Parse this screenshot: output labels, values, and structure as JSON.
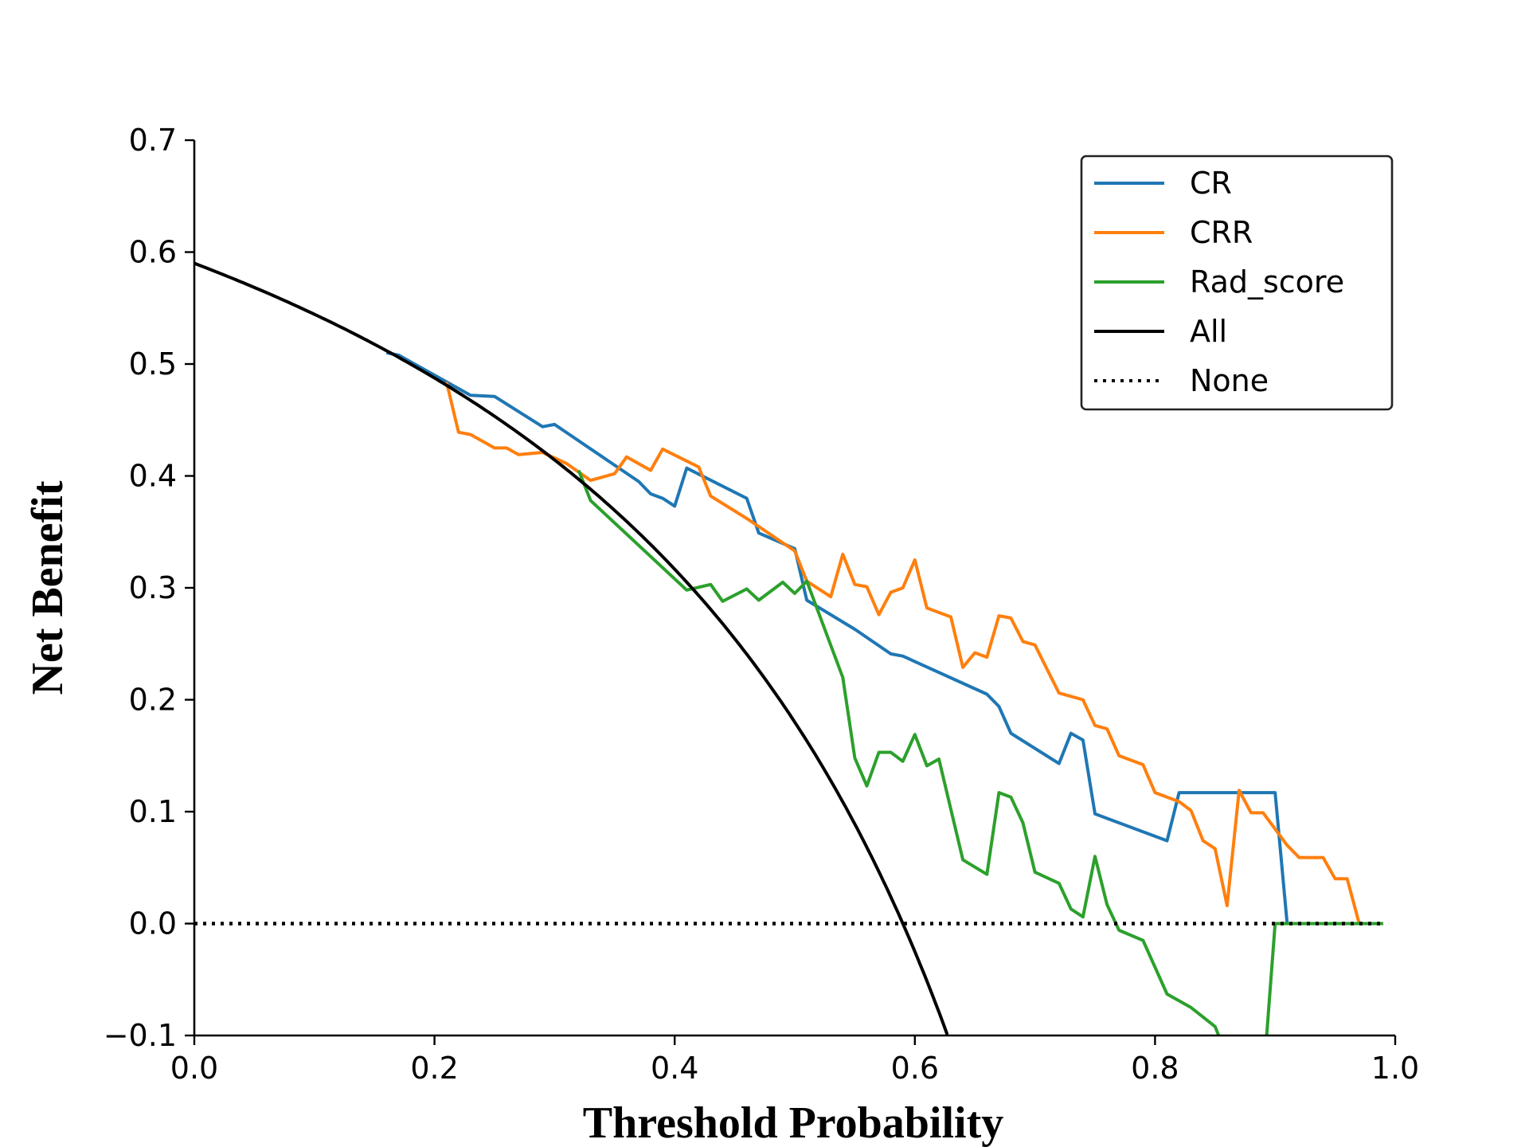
{
  "chart_data": {
    "type": "line",
    "title": "",
    "xlabel": "Threshold Probability",
    "ylabel": "Net Benefit",
    "xlim": [
      0.0,
      1.0
    ],
    "ylim": [
      -0.1,
      0.7
    ],
    "xticks": [
      "0.0",
      "0.2",
      "0.4",
      "0.6",
      "0.8",
      "1.0"
    ],
    "yticks": [
      "−0.1",
      "0.0",
      "0.1",
      "0.2",
      "0.3",
      "0.4",
      "0.5",
      "0.6",
      "0.7"
    ],
    "grid": false,
    "legend_position": "top-right",
    "series": [
      {
        "name": "CR",
        "color": "#1f77b4",
        "style": "solid",
        "points": [
          [
            0.16,
            0.51
          ],
          [
            0.17,
            0.508
          ],
          [
            0.2,
            0.49
          ],
          [
            0.23,
            0.472
          ],
          [
            0.25,
            0.471
          ],
          [
            0.29,
            0.444
          ],
          [
            0.3,
            0.446
          ],
          [
            0.37,
            0.395
          ],
          [
            0.38,
            0.384
          ],
          [
            0.39,
            0.38
          ],
          [
            0.4,
            0.373
          ],
          [
            0.41,
            0.407
          ],
          [
            0.46,
            0.38
          ],
          [
            0.47,
            0.349
          ],
          [
            0.5,
            0.335
          ],
          [
            0.51,
            0.289
          ],
          [
            0.55,
            0.263
          ],
          [
            0.58,
            0.241
          ],
          [
            0.59,
            0.239
          ],
          [
            0.66,
            0.205
          ],
          [
            0.67,
            0.194
          ],
          [
            0.68,
            0.17
          ],
          [
            0.72,
            0.143
          ],
          [
            0.73,
            0.17
          ],
          [
            0.74,
            0.164
          ],
          [
            0.75,
            0.098
          ],
          [
            0.81,
            0.074
          ],
          [
            0.82,
            0.117
          ],
          [
            0.9,
            0.117
          ],
          [
            0.91,
            0.0
          ],
          [
            0.99,
            0.0
          ]
        ]
      },
      {
        "name": "CRR",
        "color": "#ff7f0e",
        "style": "solid",
        "points": [
          [
            0.21,
            0.484
          ],
          [
            0.22,
            0.439
          ],
          [
            0.23,
            0.437
          ],
          [
            0.25,
            0.425
          ],
          [
            0.26,
            0.425
          ],
          [
            0.27,
            0.419
          ],
          [
            0.29,
            0.421
          ],
          [
            0.31,
            0.411
          ],
          [
            0.33,
            0.396
          ],
          [
            0.35,
            0.402
          ],
          [
            0.36,
            0.417
          ],
          [
            0.38,
            0.405
          ],
          [
            0.39,
            0.424
          ],
          [
            0.42,
            0.408
          ],
          [
            0.43,
            0.382
          ],
          [
            0.46,
            0.362
          ],
          [
            0.5,
            0.333
          ],
          [
            0.51,
            0.306
          ],
          [
            0.53,
            0.292
          ],
          [
            0.54,
            0.33
          ],
          [
            0.55,
            0.303
          ],
          [
            0.56,
            0.301
          ],
          [
            0.57,
            0.276
          ],
          [
            0.58,
            0.296
          ],
          [
            0.59,
            0.3
          ],
          [
            0.6,
            0.325
          ],
          [
            0.61,
            0.282
          ],
          [
            0.63,
            0.274
          ],
          [
            0.64,
            0.229
          ],
          [
            0.65,
            0.242
          ],
          [
            0.66,
            0.238
          ],
          [
            0.67,
            0.275
          ],
          [
            0.68,
            0.273
          ],
          [
            0.69,
            0.252
          ],
          [
            0.7,
            0.249
          ],
          [
            0.72,
            0.206
          ],
          [
            0.74,
            0.2
          ],
          [
            0.75,
            0.177
          ],
          [
            0.76,
            0.174
          ],
          [
            0.77,
            0.15
          ],
          [
            0.79,
            0.142
          ],
          [
            0.8,
            0.117
          ],
          [
            0.82,
            0.109
          ],
          [
            0.83,
            0.101
          ],
          [
            0.84,
            0.074
          ],
          [
            0.85,
            0.067
          ],
          [
            0.86,
            0.016
          ],
          [
            0.87,
            0.119
          ],
          [
            0.88,
            0.099
          ],
          [
            0.89,
            0.099
          ],
          [
            0.91,
            0.07
          ],
          [
            0.92,
            0.059
          ],
          [
            0.94,
            0.059
          ],
          [
            0.95,
            0.04
          ],
          [
            0.96,
            0.04
          ],
          [
            0.97,
            0.0
          ],
          [
            0.99,
            0.0
          ]
        ]
      },
      {
        "name": "Rad_score",
        "color": "#2ca02c",
        "style": "solid",
        "points": [
          [
            0.32,
            0.405
          ],
          [
            0.33,
            0.378
          ],
          [
            0.41,
            0.298
          ],
          [
            0.43,
            0.303
          ],
          [
            0.44,
            0.288
          ],
          [
            0.46,
            0.299
          ],
          [
            0.47,
            0.289
          ],
          [
            0.49,
            0.305
          ],
          [
            0.5,
            0.295
          ],
          [
            0.51,
            0.306
          ],
          [
            0.54,
            0.22
          ],
          [
            0.55,
            0.148
          ],
          [
            0.56,
            0.123
          ],
          [
            0.57,
            0.153
          ],
          [
            0.58,
            0.153
          ],
          [
            0.59,
            0.145
          ],
          [
            0.6,
            0.169
          ],
          [
            0.61,
            0.141
          ],
          [
            0.62,
            0.147
          ],
          [
            0.64,
            0.057
          ],
          [
            0.66,
            0.044
          ],
          [
            0.67,
            0.117
          ],
          [
            0.68,
            0.113
          ],
          [
            0.69,
            0.09
          ],
          [
            0.7,
            0.046
          ],
          [
            0.72,
            0.036
          ],
          [
            0.73,
            0.013
          ],
          [
            0.74,
            0.006
          ],
          [
            0.75,
            0.06
          ],
          [
            0.76,
            0.017
          ],
          [
            0.77,
            -0.006
          ],
          [
            0.79,
            -0.015
          ],
          [
            0.81,
            -0.063
          ],
          [
            0.83,
            -0.075
          ],
          [
            0.85,
            -0.092
          ],
          [
            0.853,
            -0.1
          ]
        ],
        "points2": [
          [
            0.893,
            -0.1
          ],
          [
            0.9,
            0.0
          ],
          [
            0.99,
            0.0
          ]
        ]
      },
      {
        "name": "All",
        "color": "#000000",
        "style": "solid",
        "prevalence": 0.59,
        "x_range": [
          0.0,
          0.627
        ]
      },
      {
        "name": "None",
        "color": "#000000",
        "style": "dotted",
        "points": [
          [
            0.0,
            0.0
          ],
          [
            0.99,
            0.0
          ]
        ]
      }
    ]
  }
}
